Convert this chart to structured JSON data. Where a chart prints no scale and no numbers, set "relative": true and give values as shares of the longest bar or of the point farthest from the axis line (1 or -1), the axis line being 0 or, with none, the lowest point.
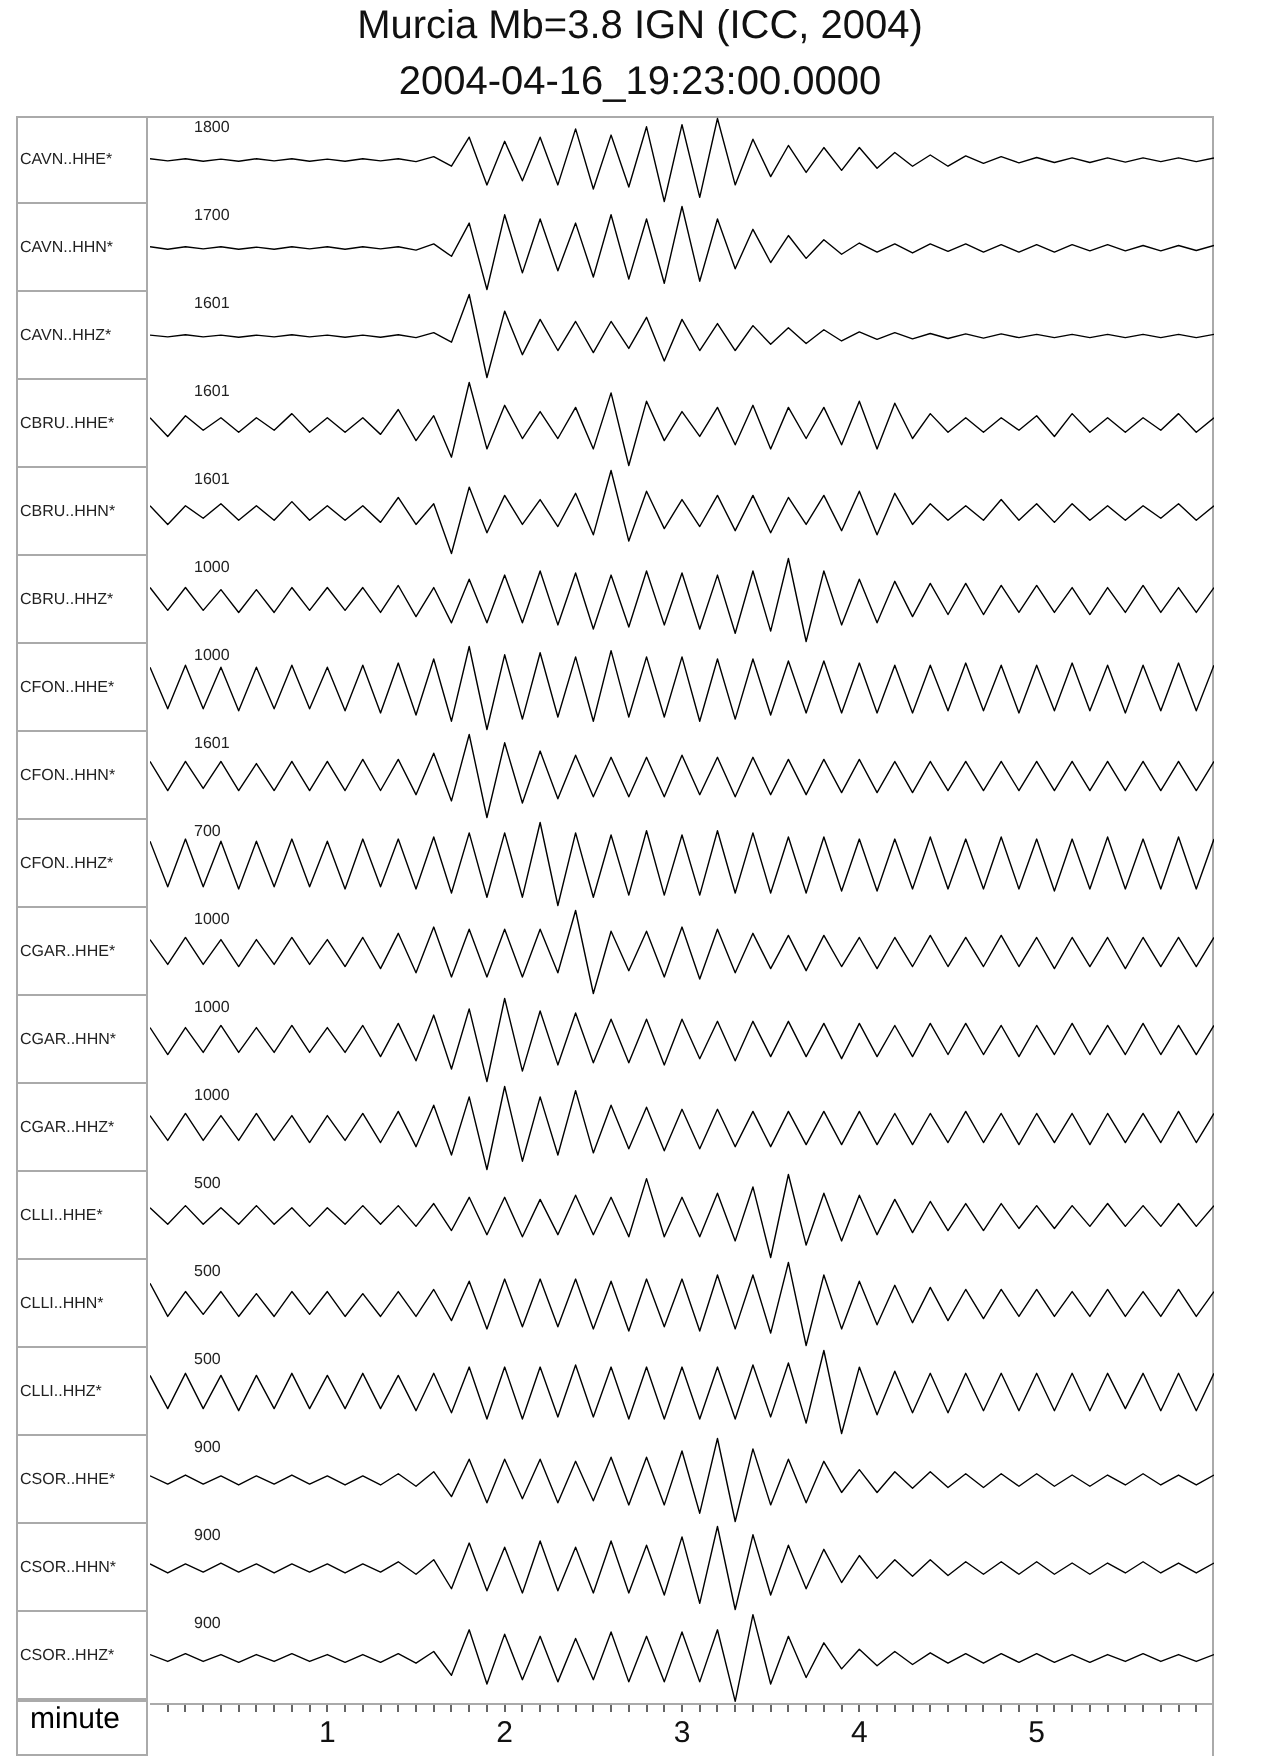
{
  "chart_data": [
    {
      "type": "line",
      "title": "Murcia Mb=3.8 IGN (ICC, 2004)",
      "subtitle": "2004-04-16_19:23:00.0000",
      "ylabel": "CAVN..HHE*",
      "annotations": [
        "1800"
      ],
      "relative": true,
      "xlim": [
        0,
        6
      ],
      "tick_labels": false,
      "color": "#000000",
      "x": [
        0,
        0.1,
        0.2,
        0.3,
        0.4,
        0.5,
        0.6,
        0.7,
        0.8,
        0.9,
        1,
        1.1,
        1.2,
        1.3,
        1.4,
        1.5,
        1.6,
        1.7,
        1.8,
        1.9,
        2,
        2.1,
        2.2,
        2.3,
        2.4,
        2.5,
        2.6,
        2.7,
        2.8,
        2.9,
        3,
        3.1,
        3.2,
        3.3,
        3.4,
        3.5,
        3.6,
        3.7,
        3.8,
        3.9,
        4,
        4.1,
        4.2,
        4.3,
        4.4,
        4.5,
        4.6,
        4.7,
        4.8,
        4.9,
        5,
        5.1,
        5.2,
        5.3,
        5.4,
        5.5,
        5.6,
        5.7,
        5.8,
        5.9,
        6
      ],
      "values": [
        0.515,
        0.49,
        0.515,
        0.485,
        0.51,
        0.485,
        0.515,
        0.49,
        0.515,
        0.485,
        0.51,
        0.485,
        0.515,
        0.49,
        0.515,
        0.48,
        0.54,
        0.425,
        0.775,
        0.2,
        0.725,
        0.25,
        0.775,
        0.2,
        0.875,
        0.15,
        0.8,
        0.175,
        0.9,
        0,
        0.925,
        0.05,
        1,
        0.2,
        0.75,
        0.3,
        0.675,
        0.35,
        0.65,
        0.375,
        0.65,
        0.4,
        0.59,
        0.425,
        0.56,
        0.425,
        0.55,
        0.46,
        0.54,
        0.465,
        0.53,
        0.47,
        0.525,
        0.47,
        0.525,
        0.475,
        0.525,
        0.48,
        0.525,
        0.48,
        0.525
      ]
    },
    {
      "type": "line",
      "ylabel": "CAVN..HHN*",
      "annotations": [
        "1700"
      ],
      "relative": true,
      "xlim": [
        0,
        6
      ],
      "tick_labels": false,
      "color": "#000000",
      "x": [
        0,
        0.1,
        0.2,
        0.3,
        0.4,
        0.5,
        0.6,
        0.7,
        0.8,
        0.9,
        1,
        1.1,
        1.2,
        1.3,
        1.4,
        1.5,
        1.6,
        1.7,
        1.8,
        1.9,
        2,
        2.1,
        2.2,
        2.3,
        2.4,
        2.5,
        2.6,
        2.7,
        2.8,
        2.9,
        3,
        3.1,
        3.2,
        3.3,
        3.4,
        3.5,
        3.6,
        3.7,
        3.8,
        3.9,
        4,
        4.1,
        4.2,
        4.3,
        4.4,
        4.5,
        4.6,
        4.7,
        4.8,
        4.9,
        5,
        5.1,
        5.2,
        5.3,
        5.4,
        5.5,
        5.6,
        5.7,
        5.8,
        5.9,
        6
      ],
      "values": [
        0.515,
        0.485,
        0.515,
        0.49,
        0.515,
        0.485,
        0.51,
        0.485,
        0.515,
        0.49,
        0.515,
        0.485,
        0.515,
        0.49,
        0.515,
        0.475,
        0.55,
        0.4,
        0.8,
        0,
        0.9,
        0.2,
        0.85,
        0.225,
        0.8,
        0.15,
        0.9,
        0.125,
        0.85,
        0.075,
        1,
        0.1,
        0.85,
        0.25,
        0.725,
        0.325,
        0.65,
        0.375,
        0.6,
        0.425,
        0.56,
        0.45,
        0.55,
        0.44,
        0.55,
        0.46,
        0.55,
        0.45,
        0.54,
        0.45,
        0.54,
        0.45,
        0.54,
        0.465,
        0.54,
        0.465,
        0.53,
        0.465,
        0.53,
        0.47,
        0.53
      ]
    },
    {
      "type": "line",
      "ylabel": "CAVN..HHZ*",
      "annotations": [
        "1601"
      ],
      "relative": true,
      "xlim": [
        0,
        6
      ],
      "tick_labels": false,
      "color": "#000000",
      "x": [
        0,
        0.1,
        0.2,
        0.3,
        0.4,
        0.5,
        0.6,
        0.7,
        0.8,
        0.9,
        1,
        1.1,
        1.2,
        1.3,
        1.4,
        1.5,
        1.6,
        1.7,
        1.8,
        1.9,
        2,
        2.1,
        2.2,
        2.3,
        2.4,
        2.5,
        2.6,
        2.7,
        2.8,
        2.9,
        3,
        3.1,
        3.2,
        3.3,
        3.4,
        3.5,
        3.6,
        3.7,
        3.8,
        3.9,
        4,
        4.1,
        4.2,
        4.3,
        4.4,
        4.5,
        4.6,
        4.7,
        4.8,
        4.9,
        5,
        5.1,
        5.2,
        5.3,
        5.4,
        5.5,
        5.6,
        5.7,
        5.8,
        5.9,
        6
      ],
      "values": [
        0.51,
        0.49,
        0.515,
        0.49,
        0.51,
        0.485,
        0.51,
        0.49,
        0.515,
        0.49,
        0.51,
        0.485,
        0.51,
        0.485,
        0.515,
        0.48,
        0.54,
        0.425,
        1,
        0,
        0.8,
        0.275,
        0.7,
        0.325,
        0.675,
        0.3,
        0.675,
        0.35,
        0.725,
        0.2,
        0.7,
        0.325,
        0.65,
        0.325,
        0.625,
        0.4,
        0.6,
        0.41,
        0.575,
        0.44,
        0.55,
        0.46,
        0.54,
        0.465,
        0.53,
        0.47,
        0.525,
        0.475,
        0.525,
        0.48,
        0.52,
        0.48,
        0.52,
        0.48,
        0.52,
        0.48,
        0.52,
        0.48,
        0.52,
        0.48,
        0.52
      ]
    },
    {
      "type": "line",
      "ylabel": "CBRU..HHE*",
      "annotations": [
        "1601"
      ],
      "relative": true,
      "xlim": [
        0,
        6
      ],
      "tick_labels": false,
      "color": "#000000",
      "x": [
        0,
        0.1,
        0.2,
        0.3,
        0.4,
        0.5,
        0.6,
        0.7,
        0.8,
        0.9,
        1,
        1.1,
        1.2,
        1.3,
        1.4,
        1.5,
        1.6,
        1.7,
        1.8,
        1.9,
        2,
        2.1,
        2.2,
        2.3,
        2.4,
        2.5,
        2.6,
        2.7,
        2.8,
        2.9,
        3,
        3.1,
        3.2,
        3.3,
        3.4,
        3.5,
        3.6,
        3.7,
        3.8,
        3.9,
        4,
        4.1,
        4.2,
        4.3,
        4.4,
        4.5,
        4.6,
        4.7,
        4.8,
        4.9,
        5,
        5.1,
        5.2,
        5.3,
        5.4,
        5.5,
        5.6,
        5.7,
        5.8,
        5.9,
        6
      ],
      "values": [
        0.575,
        0.35,
        0.6,
        0.425,
        0.575,
        0.4,
        0.575,
        0.425,
        0.625,
        0.4,
        0.575,
        0.4,
        0.575,
        0.375,
        0.675,
        0.3,
        0.6,
        0.1,
        1,
        0.2,
        0.725,
        0.325,
        0.65,
        0.325,
        0.7,
        0.2,
        0.875,
        0,
        0.775,
        0.3,
        0.65,
        0.35,
        0.7,
        0.25,
        0.725,
        0.2,
        0.7,
        0.325,
        0.7,
        0.25,
        0.775,
        0.2,
        0.75,
        0.325,
        0.625,
        0.4,
        0.575,
        0.4,
        0.575,
        0.425,
        0.6,
        0.35,
        0.625,
        0.4,
        0.575,
        0.4,
        0.575,
        0.425,
        0.625,
        0.4,
        0.575
      ]
    },
    {
      "type": "line",
      "ylabel": "CBRU..HHN*",
      "annotations": [
        "1601"
      ],
      "relative": true,
      "xlim": [
        0,
        6
      ],
      "tick_labels": false,
      "color": "#000000",
      "x": [
        0,
        0.1,
        0.2,
        0.3,
        0.4,
        0.5,
        0.6,
        0.7,
        0.8,
        0.9,
        1,
        1.1,
        1.2,
        1.3,
        1.4,
        1.5,
        1.6,
        1.7,
        1.8,
        1.9,
        2,
        2.1,
        2.2,
        2.3,
        2.4,
        2.5,
        2.6,
        2.7,
        2.8,
        2.9,
        3,
        3.1,
        3.2,
        3.3,
        3.4,
        3.5,
        3.6,
        3.7,
        3.8,
        3.9,
        4,
        4.1,
        4.2,
        4.3,
        4.4,
        4.5,
        4.6,
        4.7,
        4.8,
        4.9,
        5,
        5.1,
        5.2,
        5.3,
        5.4,
        5.5,
        5.6,
        5.7,
        5.8,
        5.9,
        6
      ],
      "values": [
        0.575,
        0.35,
        0.575,
        0.425,
        0.6,
        0.4,
        0.575,
        0.4,
        0.625,
        0.4,
        0.575,
        0.4,
        0.575,
        0.375,
        0.675,
        0.35,
        0.6,
        0,
        0.8,
        0.25,
        0.7,
        0.35,
        0.65,
        0.325,
        0.725,
        0.225,
        1,
        0.15,
        0.75,
        0.3,
        0.65,
        0.325,
        0.7,
        0.275,
        0.7,
        0.25,
        0.675,
        0.35,
        0.7,
        0.275,
        0.75,
        0.225,
        0.725,
        0.35,
        0.6,
        0.4,
        0.575,
        0.4,
        0.65,
        0.4,
        0.6,
        0.375,
        0.6,
        0.4,
        0.575,
        0.4,
        0.575,
        0.425,
        0.6,
        0.4,
        0.575
      ]
    },
    {
      "type": "line",
      "ylabel": "CBRU..HHZ*",
      "annotations": [
        "1000"
      ],
      "relative": true,
      "xlim": [
        0,
        6
      ],
      "tick_labels": false,
      "color": "#000000",
      "x": [
        0,
        0.1,
        0.2,
        0.3,
        0.4,
        0.5,
        0.6,
        0.7,
        0.8,
        0.9,
        1,
        1.1,
        1.2,
        1.3,
        1.4,
        1.5,
        1.6,
        1.7,
        1.8,
        1.9,
        2,
        2.1,
        2.2,
        2.3,
        2.4,
        2.5,
        2.6,
        2.7,
        2.8,
        2.9,
        3,
        3.1,
        3.2,
        3.3,
        3.4,
        3.5,
        3.6,
        3.7,
        3.8,
        3.9,
        4,
        4.1,
        4.2,
        4.3,
        4.4,
        4.5,
        4.6,
        4.7,
        4.8,
        4.9,
        5,
        5.1,
        5.2,
        5.3,
        5.4,
        5.5,
        5.6,
        5.7,
        5.8,
        5.9,
        6
      ],
      "values": [
        0.65,
        0.375,
        0.65,
        0.375,
        0.625,
        0.35,
        0.625,
        0.35,
        0.65,
        0.375,
        0.65,
        0.375,
        0.65,
        0.35,
        0.675,
        0.3,
        0.65,
        0.225,
        0.75,
        0.225,
        0.8,
        0.225,
        0.85,
        0.2,
        0.825,
        0.15,
        0.8,
        0.175,
        0.85,
        0.2,
        0.825,
        0.15,
        0.8,
        0.1,
        0.85,
        0.125,
        1,
        0,
        0.85,
        0.2,
        0.75,
        0.225,
        0.725,
        0.3,
        0.7,
        0.325,
        0.7,
        0.325,
        0.675,
        0.35,
        0.675,
        0.35,
        0.65,
        0.325,
        0.65,
        0.35,
        0.675,
        0.35,
        0.65,
        0.35,
        0.65
      ]
    },
    {
      "type": "line",
      "ylabel": "CFON..HHE*",
      "annotations": [
        "1000"
      ],
      "relative": true,
      "xlim": [
        0,
        6
      ],
      "tick_labels": false,
      "color": "#000000",
      "x": [
        0,
        0.1,
        0.2,
        0.3,
        0.4,
        0.5,
        0.6,
        0.7,
        0.8,
        0.9,
        1,
        1.1,
        1.2,
        1.3,
        1.4,
        1.5,
        1.6,
        1.7,
        1.8,
        1.9,
        2,
        2.1,
        2.2,
        2.3,
        2.4,
        2.5,
        2.6,
        2.7,
        2.8,
        2.9,
        3,
        3.1,
        3.2,
        3.3,
        3.4,
        3.5,
        3.6,
        3.7,
        3.8,
        3.9,
        4,
        4.1,
        4.2,
        4.3,
        4.4,
        4.5,
        4.6,
        4.7,
        4.8,
        4.9,
        5,
        5.1,
        5.2,
        5.3,
        5.4,
        5.5,
        5.6,
        5.7,
        5.8,
        5.9,
        6
      ],
      "values": [
        0.75,
        0.25,
        0.775,
        0.25,
        0.75,
        0.225,
        0.75,
        0.25,
        0.775,
        0.25,
        0.75,
        0.225,
        0.775,
        0.2,
        0.8,
        0.175,
        0.85,
        0.1,
        1,
        0,
        0.9,
        0.125,
        0.925,
        0.15,
        0.875,
        0.1,
        0.95,
        0.15,
        0.875,
        0.15,
        0.875,
        0.1,
        0.85,
        0.125,
        0.85,
        0.175,
        0.825,
        0.2,
        0.825,
        0.2,
        0.8,
        0.2,
        0.775,
        0.2,
        0.775,
        0.225,
        0.8,
        0.225,
        0.775,
        0.2,
        0.775,
        0.225,
        0.8,
        0.225,
        0.775,
        0.2,
        0.775,
        0.225,
        0.8,
        0.225,
        0.775
      ]
    },
    {
      "type": "line",
      "ylabel": "CFON..HHN*",
      "annotations": [
        "1601"
      ],
      "relative": true,
      "xlim": [
        0,
        6
      ],
      "tick_labels": false,
      "color": "#000000",
      "x": [
        0,
        0.1,
        0.2,
        0.3,
        0.4,
        0.5,
        0.6,
        0.7,
        0.8,
        0.9,
        1,
        1.1,
        1.2,
        1.3,
        1.4,
        1.5,
        1.6,
        1.7,
        1.8,
        1.9,
        2,
        2.1,
        2.2,
        2.3,
        2.4,
        2.5,
        2.6,
        2.7,
        2.8,
        2.9,
        3,
        3.1,
        3.2,
        3.3,
        3.4,
        3.5,
        3.6,
        3.7,
        3.8,
        3.9,
        4,
        4.1,
        4.2,
        4.3,
        4.4,
        4.5,
        4.6,
        4.7,
        4.8,
        4.9,
        5,
        5.1,
        5.2,
        5.3,
        5.4,
        5.5,
        5.6,
        5.7,
        5.8,
        5.9,
        6
      ],
      "values": [
        0.675,
        0.325,
        0.675,
        0.35,
        0.675,
        0.325,
        0.65,
        0.325,
        0.675,
        0.325,
        0.675,
        0.325,
        0.7,
        0.325,
        0.7,
        0.275,
        0.775,
        0.2,
        1,
        0,
        0.9,
        0.175,
        0.8,
        0.225,
        0.75,
        0.25,
        0.725,
        0.25,
        0.725,
        0.25,
        0.75,
        0.275,
        0.725,
        0.25,
        0.725,
        0.275,
        0.7,
        0.275,
        0.7,
        0.3,
        0.7,
        0.3,
        0.675,
        0.3,
        0.675,
        0.325,
        0.675,
        0.325,
        0.675,
        0.325,
        0.675,
        0.325,
        0.675,
        0.325,
        0.675,
        0.325,
        0.675,
        0.325,
        0.675,
        0.325,
        0.675
      ]
    },
    {
      "type": "line",
      "ylabel": "CFON..HHZ*",
      "annotations": [
        "700"
      ],
      "relative": true,
      "xlim": [
        0,
        6
      ],
      "tick_labels": false,
      "color": "#000000",
      "x": [
        0,
        0.1,
        0.2,
        0.3,
        0.4,
        0.5,
        0.6,
        0.7,
        0.8,
        0.9,
        1,
        1.1,
        1.2,
        1.3,
        1.4,
        1.5,
        1.6,
        1.7,
        1.8,
        1.9,
        2,
        2.1,
        2.2,
        2.3,
        2.4,
        2.5,
        2.6,
        2.7,
        2.8,
        2.9,
        3,
        3.1,
        3.2,
        3.3,
        3.4,
        3.5,
        3.6,
        3.7,
        3.8,
        3.9,
        4,
        4.1,
        4.2,
        4.3,
        4.4,
        4.5,
        4.6,
        4.7,
        4.8,
        4.9,
        5,
        5.1,
        5.2,
        5.3,
        5.4,
        5.5,
        5.6,
        5.7,
        5.8,
        5.9,
        6
      ],
      "values": [
        0.775,
        0.225,
        0.8,
        0.225,
        0.775,
        0.2,
        0.775,
        0.225,
        0.8,
        0.225,
        0.775,
        0.2,
        0.8,
        0.225,
        0.8,
        0.2,
        0.825,
        0.15,
        0.875,
        0.1,
        0.875,
        0.1,
        1,
        0,
        0.875,
        0.1,
        0.85,
        0.125,
        0.9,
        0.125,
        0.85,
        0.125,
        0.9,
        0.15,
        0.875,
        0.15,
        0.825,
        0.15,
        0.825,
        0.175,
        0.8,
        0.175,
        0.8,
        0.2,
        0.825,
        0.2,
        0.8,
        0.2,
        0.825,
        0.2,
        0.8,
        0.175,
        0.8,
        0.2,
        0.825,
        0.2,
        0.8,
        0.2,
        0.825,
        0.2,
        0.8
      ]
    },
    {
      "type": "line",
      "ylabel": "CGAR..HHE*",
      "annotations": [
        "1000"
      ],
      "relative": true,
      "xlim": [
        0,
        6
      ],
      "tick_labels": false,
      "color": "#000000",
      "x": [
        0,
        0.1,
        0.2,
        0.3,
        0.4,
        0.5,
        0.6,
        0.7,
        0.8,
        0.9,
        1,
        1.1,
        1.2,
        1.3,
        1.4,
        1.5,
        1.6,
        1.7,
        1.8,
        1.9,
        2,
        2.1,
        2.2,
        2.3,
        2.4,
        2.5,
        2.6,
        2.7,
        2.8,
        2.9,
        3,
        3.1,
        3.2,
        3.3,
        3.4,
        3.5,
        3.6,
        3.7,
        3.8,
        3.9,
        4,
        4.1,
        4.2,
        4.3,
        4.4,
        4.5,
        4.6,
        4.7,
        4.8,
        4.9,
        5,
        5.1,
        5.2,
        5.3,
        5.4,
        5.5,
        5.6,
        5.7,
        5.8,
        5.9,
        6
      ],
      "values": [
        0.65,
        0.35,
        0.675,
        0.35,
        0.65,
        0.325,
        0.65,
        0.35,
        0.675,
        0.35,
        0.65,
        0.325,
        0.675,
        0.3,
        0.725,
        0.25,
        0.8,
        0.2,
        0.775,
        0.2,
        0.775,
        0.2,
        0.775,
        0.25,
        1,
        0,
        0.75,
        0.275,
        0.75,
        0.2,
        0.8,
        0.175,
        0.775,
        0.25,
        0.725,
        0.3,
        0.7,
        0.275,
        0.7,
        0.325,
        0.675,
        0.3,
        0.675,
        0.325,
        0.7,
        0.325,
        0.675,
        0.325,
        0.7,
        0.325,
        0.675,
        0.3,
        0.675,
        0.325,
        0.675,
        0.3,
        0.675,
        0.325,
        0.675,
        0.325,
        0.675
      ]
    },
    {
      "type": "line",
      "ylabel": "CGAR..HHN*",
      "annotations": [
        "1000"
      ],
      "relative": true,
      "xlim": [
        0,
        6
      ],
      "tick_labels": false,
      "color": "#000000",
      "x": [
        0,
        0.1,
        0.2,
        0.3,
        0.4,
        0.5,
        0.6,
        0.7,
        0.8,
        0.9,
        1,
        1.1,
        1.2,
        1.3,
        1.4,
        1.5,
        1.6,
        1.7,
        1.8,
        1.9,
        2,
        2.1,
        2.2,
        2.3,
        2.4,
        2.5,
        2.6,
        2.7,
        2.8,
        2.9,
        3,
        3.1,
        3.2,
        3.3,
        3.4,
        3.5,
        3.6,
        3.7,
        3.8,
        3.9,
        4,
        4.1,
        4.2,
        4.3,
        4.4,
        4.5,
        4.6,
        4.7,
        4.8,
        4.9,
        5,
        5.1,
        5.2,
        5.3,
        5.4,
        5.5,
        5.6,
        5.7,
        5.8,
        5.9,
        6
      ],
      "values": [
        0.65,
        0.325,
        0.65,
        0.35,
        0.675,
        0.35,
        0.65,
        0.35,
        0.675,
        0.35,
        0.65,
        0.35,
        0.675,
        0.3,
        0.7,
        0.25,
        0.8,
        0.15,
        0.875,
        0,
        1,
        0.125,
        0.85,
        0.2,
        0.825,
        0.225,
        0.75,
        0.225,
        0.75,
        0.2,
        0.75,
        0.275,
        0.725,
        0.25,
        0.725,
        0.3,
        0.725,
        0.3,
        0.7,
        0.275,
        0.7,
        0.3,
        0.675,
        0.3,
        0.7,
        0.325,
        0.7,
        0.325,
        0.675,
        0.3,
        0.675,
        0.325,
        0.7,
        0.325,
        0.675,
        0.325,
        0.7,
        0.325,
        0.675,
        0.325,
        0.675
      ]
    },
    {
      "type": "line",
      "ylabel": "CGAR..HHZ*",
      "annotations": [
        "1000"
      ],
      "relative": true,
      "xlim": [
        0,
        6
      ],
      "tick_labels": false,
      "color": "#000000",
      "x": [
        0,
        0.1,
        0.2,
        0.3,
        0.4,
        0.5,
        0.6,
        0.7,
        0.8,
        0.9,
        1,
        1.1,
        1.2,
        1.3,
        1.4,
        1.5,
        1.6,
        1.7,
        1.8,
        1.9,
        2,
        2.1,
        2.2,
        2.3,
        2.4,
        2.5,
        2.6,
        2.7,
        2.8,
        2.9,
        3,
        3.1,
        3.2,
        3.3,
        3.4,
        3.5,
        3.6,
        3.7,
        3.8,
        3.9,
        4,
        4.1,
        4.2,
        4.3,
        4.4,
        4.5,
        4.6,
        4.7,
        4.8,
        4.9,
        5,
        5.1,
        5.2,
        5.3,
        5.4,
        5.5,
        5.6,
        5.7,
        5.8,
        5.9,
        6
      ],
      "values": [
        0.65,
        0.35,
        0.675,
        0.35,
        0.65,
        0.35,
        0.675,
        0.35,
        0.65,
        0.325,
        0.65,
        0.35,
        0.675,
        0.325,
        0.7,
        0.275,
        0.775,
        0.175,
        0.875,
        0,
        1,
        0.1,
        0.875,
        0.175,
        0.95,
        0.2,
        0.775,
        0.25,
        0.75,
        0.225,
        0.725,
        0.25,
        0.725,
        0.275,
        0.7,
        0.275,
        0.7,
        0.3,
        0.7,
        0.3,
        0.7,
        0.3,
        0.675,
        0.3,
        0.675,
        0.325,
        0.7,
        0.325,
        0.675,
        0.3,
        0.675,
        0.325,
        0.675,
        0.3,
        0.675,
        0.325,
        0.675,
        0.325,
        0.7,
        0.325,
        0.675
      ]
    },
    {
      "type": "line",
      "ylabel": "CLLI..HHE*",
      "annotations": [
        "500"
      ],
      "relative": true,
      "xlim": [
        0,
        6
      ],
      "tick_labels": false,
      "color": "#000000",
      "x": [
        0,
        0.1,
        0.2,
        0.3,
        0.4,
        0.5,
        0.6,
        0.7,
        0.8,
        0.9,
        1,
        1.1,
        1.2,
        1.3,
        1.4,
        1.5,
        1.6,
        1.7,
        1.8,
        1.9,
        2,
        2.1,
        2.2,
        2.3,
        2.4,
        2.5,
        2.6,
        2.7,
        2.8,
        2.9,
        3,
        3.1,
        3.2,
        3.3,
        3.4,
        3.5,
        3.6,
        3.7,
        3.8,
        3.9,
        4,
        4.1,
        4.2,
        4.3,
        4.4,
        4.5,
        4.6,
        4.7,
        4.8,
        4.9,
        5,
        5.1,
        5.2,
        5.3,
        5.4,
        5.5,
        5.6,
        5.7,
        5.8,
        5.9,
        6
      ],
      "values": [
        0.6,
        0.4,
        0.625,
        0.4,
        0.6,
        0.4,
        0.625,
        0.4,
        0.6,
        0.375,
        0.6,
        0.4,
        0.625,
        0.4,
        0.625,
        0.375,
        0.65,
        0.325,
        0.725,
        0.275,
        0.725,
        0.25,
        0.7,
        0.275,
        0.75,
        0.275,
        0.725,
        0.25,
        0.95,
        0.25,
        0.725,
        0.25,
        0.775,
        0.2,
        0.85,
        0,
        1,
        0.15,
        0.775,
        0.2,
        0.75,
        0.275,
        0.7,
        0.3,
        0.675,
        0.325,
        0.65,
        0.325,
        0.65,
        0.35,
        0.625,
        0.35,
        0.625,
        0.375,
        0.65,
        0.375,
        0.625,
        0.375,
        0.65,
        0.375,
        0.625
      ]
    },
    {
      "type": "line",
      "ylabel": "CLLI..HHN*",
      "annotations": [
        "500"
      ],
      "relative": true,
      "xlim": [
        0,
        6
      ],
      "tick_labels": false,
      "color": "#000000",
      "x": [
        0,
        0.1,
        0.2,
        0.3,
        0.4,
        0.5,
        0.6,
        0.7,
        0.8,
        0.9,
        1,
        1.1,
        1.2,
        1.3,
        1.4,
        1.5,
        1.6,
        1.7,
        1.8,
        1.9,
        2,
        2.1,
        2.2,
        2.3,
        2.4,
        2.5,
        2.6,
        2.7,
        2.8,
        2.9,
        3,
        3.1,
        3.2,
        3.3,
        3.4,
        3.5,
        3.6,
        3.7,
        3.8,
        3.9,
        4,
        4.1,
        4.2,
        4.3,
        4.4,
        4.5,
        4.6,
        4.7,
        4.8,
        4.9,
        5,
        5.1,
        5.2,
        5.3,
        5.4,
        5.5,
        5.6,
        5.7,
        5.8,
        5.9,
        6
      ],
      "values": [
        0.75,
        0.35,
        0.65,
        0.375,
        0.65,
        0.35,
        0.625,
        0.35,
        0.65,
        0.375,
        0.65,
        0.35,
        0.625,
        0.35,
        0.65,
        0.35,
        0.675,
        0.3,
        0.775,
        0.2,
        0.8,
        0.225,
        0.8,
        0.225,
        0.8,
        0.2,
        0.775,
        0.175,
        0.8,
        0.225,
        0.8,
        0.175,
        0.85,
        0.2,
        0.85,
        0.15,
        1,
        0,
        0.85,
        0.2,
        0.775,
        0.25,
        0.725,
        0.275,
        0.7,
        0.3,
        0.675,
        0.325,
        0.675,
        0.35,
        0.675,
        0.35,
        0.65,
        0.35,
        0.675,
        0.35,
        0.65,
        0.35,
        0.675,
        0.35,
        0.65
      ]
    },
    {
      "type": "line",
      "ylabel": "CLLI..HHZ*",
      "annotations": [
        "500"
      ],
      "relative": true,
      "xlim": [
        0,
        6
      ],
      "tick_labels": false,
      "color": "#000000",
      "x": [
        0,
        0.1,
        0.2,
        0.3,
        0.4,
        0.5,
        0.6,
        0.7,
        0.8,
        0.9,
        1,
        1.1,
        1.2,
        1.3,
        1.4,
        1.5,
        1.6,
        1.7,
        1.8,
        1.9,
        2,
        2.1,
        2.2,
        2.3,
        2.4,
        2.5,
        2.6,
        2.7,
        2.8,
        2.9,
        3,
        3.1,
        3.2,
        3.3,
        3.4,
        3.5,
        3.6,
        3.7,
        3.8,
        3.9,
        4,
        4.1,
        4.2,
        4.3,
        4.4,
        4.5,
        4.6,
        4.7,
        4.8,
        4.9,
        5,
        5.1,
        5.2,
        5.3,
        5.4,
        5.5,
        5.6,
        5.7,
        5.8,
        5.9,
        6
      ],
      "values": [
        0.7,
        0.3,
        0.725,
        0.3,
        0.7,
        0.275,
        0.7,
        0.3,
        0.725,
        0.3,
        0.7,
        0.3,
        0.725,
        0.3,
        0.7,
        0.275,
        0.725,
        0.25,
        0.8,
        0.175,
        0.8,
        0.175,
        0.8,
        0.2,
        0.825,
        0.2,
        0.8,
        0.175,
        0.8,
        0.175,
        0.8,
        0.175,
        0.8,
        0.175,
        0.825,
        0.2,
        0.85,
        0.125,
        1,
        0,
        0.8,
        0.225,
        0.75,
        0.25,
        0.725,
        0.25,
        0.725,
        0.275,
        0.725,
        0.275,
        0.725,
        0.275,
        0.725,
        0.275,
        0.725,
        0.3,
        0.725,
        0.275,
        0.725,
        0.275,
        0.725
      ]
    },
    {
      "type": "line",
      "ylabel": "CSOR..HHE*",
      "annotations": [
        "900"
      ],
      "relative": true,
      "xlim": [
        0,
        6
      ],
      "tick_labels": false,
      "color": "#000000",
      "x": [
        0,
        0.1,
        0.2,
        0.3,
        0.4,
        0.5,
        0.6,
        0.7,
        0.8,
        0.9,
        1,
        1.1,
        1.2,
        1.3,
        1.4,
        1.5,
        1.6,
        1.7,
        1.8,
        1.9,
        2,
        2.1,
        2.2,
        2.3,
        2.4,
        2.5,
        2.6,
        2.7,
        2.8,
        2.9,
        3,
        3.1,
        3.2,
        3.3,
        3.4,
        3.5,
        3.6,
        3.7,
        3.8,
        3.9,
        4,
        4.1,
        4.2,
        4.3,
        4.4,
        4.5,
        4.6,
        4.7,
        4.8,
        4.9,
        5,
        5.1,
        5.2,
        5.3,
        5.4,
        5.5,
        5.6,
        5.7,
        5.8,
        5.9,
        6
      ],
      "values": [
        0.55,
        0.45,
        0.56,
        0.45,
        0.55,
        0.44,
        0.55,
        0.45,
        0.56,
        0.45,
        0.55,
        0.44,
        0.55,
        0.44,
        0.575,
        0.425,
        0.6,
        0.3,
        0.75,
        0.225,
        0.75,
        0.275,
        0.75,
        0.225,
        0.725,
        0.25,
        0.775,
        0.2,
        0.775,
        0.2,
        0.85,
        0.1,
        1,
        0,
        0.875,
        0.2,
        0.75,
        0.225,
        0.725,
        0.35,
        0.625,
        0.35,
        0.6,
        0.4,
        0.6,
        0.41,
        0.575,
        0.41,
        0.575,
        0.425,
        0.575,
        0.425,
        0.56,
        0.425,
        0.56,
        0.44,
        0.575,
        0.44,
        0.56,
        0.44,
        0.56
      ]
    },
    {
      "type": "line",
      "ylabel": "CSOR..HHN*",
      "annotations": [
        "900"
      ],
      "relative": true,
      "xlim": [
        0,
        6
      ],
      "tick_labels": false,
      "color": "#000000",
      "x": [
        0,
        0.1,
        0.2,
        0.3,
        0.4,
        0.5,
        0.6,
        0.7,
        0.8,
        0.9,
        1,
        1.1,
        1.2,
        1.3,
        1.4,
        1.5,
        1.6,
        1.7,
        1.8,
        1.9,
        2,
        2.1,
        2.2,
        2.3,
        2.4,
        2.5,
        2.6,
        2.7,
        2.8,
        2.9,
        3,
        3.1,
        3.2,
        3.3,
        3.4,
        3.5,
        3.6,
        3.7,
        3.8,
        3.9,
        4,
        4.1,
        4.2,
        4.3,
        4.4,
        4.5,
        4.6,
        4.7,
        4.8,
        4.9,
        5,
        5.1,
        5.2,
        5.3,
        5.4,
        5.5,
        5.6,
        5.7,
        5.8,
        5.9,
        6
      ],
      "values": [
        0.55,
        0.44,
        0.55,
        0.45,
        0.56,
        0.45,
        0.55,
        0.44,
        0.55,
        0.45,
        0.55,
        0.44,
        0.55,
        0.45,
        0.575,
        0.425,
        0.6,
        0.25,
        0.8,
        0.225,
        0.75,
        0.2,
        0.825,
        0.225,
        0.75,
        0.2,
        0.825,
        0.2,
        0.775,
        0.175,
        0.875,
        0.075,
        1,
        0,
        0.9,
        0.175,
        0.775,
        0.25,
        0.725,
        0.325,
        0.65,
        0.375,
        0.6,
        0.4,
        0.6,
        0.41,
        0.575,
        0.425,
        0.575,
        0.425,
        0.575,
        0.425,
        0.56,
        0.425,
        0.56,
        0.44,
        0.575,
        0.44,
        0.56,
        0.44,
        0.56
      ]
    },
    {
      "type": "line",
      "ylabel": "CSOR..HHZ*",
      "annotations": [
        "900"
      ],
      "relative": true,
      "xlim": [
        0,
        6
      ],
      "tick_labels": "x",
      "color": "#000000",
      "xlabel": "minute",
      "xticks": [
        {
          "value": 0.1,
          "label": null
        },
        {
          "value": 0.2,
          "label": null
        },
        {
          "value": 0.3,
          "label": null
        },
        {
          "value": 0.4,
          "label": null
        },
        {
          "value": 0.5,
          "label": null
        },
        {
          "value": 0.6,
          "label": null
        },
        {
          "value": 0.7,
          "label": null
        },
        {
          "value": 0.8,
          "label": null
        },
        {
          "value": 0.9,
          "label": null
        },
        1,
        {
          "value": 1.1,
          "label": null
        },
        {
          "value": 1.2,
          "label": null
        },
        {
          "value": 1.3,
          "label": null
        },
        {
          "value": 1.4,
          "label": null
        },
        {
          "value": 1.5,
          "label": null
        },
        {
          "value": 1.6,
          "label": null
        },
        {
          "value": 1.7,
          "label": null
        },
        {
          "value": 1.8,
          "label": null
        },
        {
          "value": 1.9,
          "label": null
        },
        2,
        {
          "value": 2.1,
          "label": null
        },
        {
          "value": 2.2,
          "label": null
        },
        {
          "value": 2.3,
          "label": null
        },
        {
          "value": 2.4,
          "label": null
        },
        {
          "value": 2.5,
          "label": null
        },
        {
          "value": 2.6,
          "label": null
        },
        {
          "value": 2.7,
          "label": null
        },
        {
          "value": 2.8,
          "label": null
        },
        {
          "value": 2.9,
          "label": null
        },
        3,
        {
          "value": 3.1,
          "label": null
        },
        {
          "value": 3.2,
          "label": null
        },
        {
          "value": 3.3,
          "label": null
        },
        {
          "value": 3.4,
          "label": null
        },
        {
          "value": 3.5,
          "label": null
        },
        {
          "value": 3.6,
          "label": null
        },
        {
          "value": 3.7,
          "label": null
        },
        {
          "value": 3.8,
          "label": null
        },
        {
          "value": 3.9,
          "label": null
        },
        4,
        {
          "value": 4.1,
          "label": null
        },
        {
          "value": 4.2,
          "label": null
        },
        {
          "value": 4.3,
          "label": null
        },
        {
          "value": 4.4,
          "label": null
        },
        {
          "value": 4.5,
          "label": null
        },
        {
          "value": 4.6,
          "label": null
        },
        {
          "value": 4.7,
          "label": null
        },
        {
          "value": 4.8,
          "label": null
        },
        {
          "value": 4.9,
          "label": null
        },
        5,
        {
          "value": 5.1,
          "label": null
        },
        {
          "value": 5.2,
          "label": null
        },
        {
          "value": 5.3,
          "label": null
        },
        {
          "value": 5.4,
          "label": null
        },
        {
          "value": 5.5,
          "label": null
        },
        {
          "value": 5.6,
          "label": null
        },
        {
          "value": 5.7,
          "label": null
        },
        {
          "value": 5.8,
          "label": null
        },
        {
          "value": 5.9,
          "label": null
        }
      ],
      "x": [
        0,
        0.1,
        0.2,
        0.3,
        0.4,
        0.5,
        0.6,
        0.7,
        0.8,
        0.9,
        1,
        1.1,
        1.2,
        1.3,
        1.4,
        1.5,
        1.6,
        1.7,
        1.8,
        1.9,
        2,
        2.1,
        2.2,
        2.3,
        2.4,
        2.5,
        2.6,
        2.7,
        2.8,
        2.9,
        3,
        3.1,
        3.2,
        3.3,
        3.4,
        3.5,
        3.6,
        3.7,
        3.8,
        3.9,
        4,
        4.1,
        4.2,
        4.3,
        4.4,
        4.5,
        4.6,
        4.7,
        4.8,
        4.9,
        5,
        5.1,
        5.2,
        5.3,
        5.4,
        5.5,
        5.6,
        5.7,
        5.8,
        5.9,
        6
      ],
      "values": [
        0.54,
        0.46,
        0.55,
        0.46,
        0.54,
        0.45,
        0.54,
        0.46,
        0.55,
        0.46,
        0.54,
        0.45,
        0.54,
        0.45,
        0.55,
        0.44,
        0.575,
        0.3,
        0.825,
        0.2,
        0.775,
        0.25,
        0.75,
        0.225,
        0.725,
        0.25,
        0.8,
        0.225,
        0.75,
        0.225,
        0.8,
        0.225,
        0.825,
        0,
        1,
        0.2,
        0.75,
        0.275,
        0.675,
        0.375,
        0.6,
        0.41,
        0.575,
        0.425,
        0.56,
        0.44,
        0.55,
        0.44,
        0.55,
        0.45,
        0.55,
        0.45,
        0.54,
        0.45,
        0.54,
        0.46,
        0.55,
        0.46,
        0.54,
        0.46,
        0.54
      ]
    }
  ]
}
